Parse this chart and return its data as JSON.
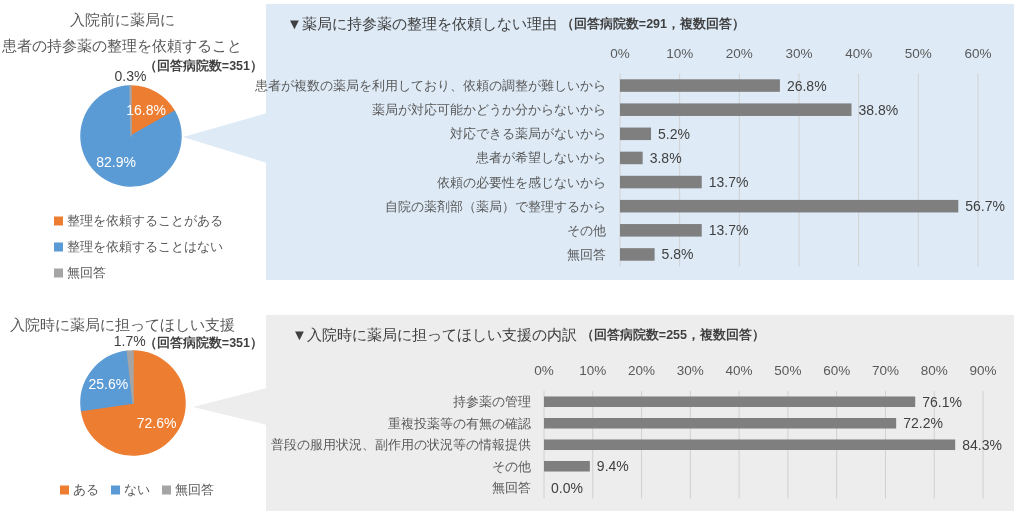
{
  "chart_data": [
    {
      "type": "pie",
      "title": "入院前に薬局に患者の持参薬の整理を依頼すること",
      "subtitle": "（回答病院数=351）",
      "categories": [
        "整理を依頼することがある",
        "整理を依頼することはない",
        "無回答"
      ],
      "values": [
        16.8,
        82.9,
        0.3
      ],
      "colors": [
        "#ed7d31",
        "#5b9bd5",
        "#a5a5a5"
      ],
      "value_labels": [
        "16.8%",
        "82.9%",
        "0.3%"
      ],
      "legend": "bottom"
    },
    {
      "type": "bar",
      "orientation": "horizontal",
      "title": "▼薬局に持参薬の整理を依頼しない理由",
      "subtitle": "（回答病院数=291，複数回答）",
      "categories": [
        "患者が複数の薬局を利用しており、依頼の調整が難しいから",
        "薬局が対応可能かどうか分からないから",
        "対応できる薬局がないから",
        "患者が希望しないから",
        "依頼の必要性を感じないから",
        "自院の薬剤部（薬局）で整理するから",
        "その他",
        "無回答"
      ],
      "values": [
        26.8,
        38.8,
        5.2,
        3.8,
        13.7,
        56.7,
        13.7,
        5.8
      ],
      "color": "#7f7f7f",
      "value_labels": [
        "26.8%",
        "38.8%",
        "5.2%",
        "3.8%",
        "13.7%",
        "56.7%",
        "13.7%",
        "5.8%"
      ],
      "xlim": [
        0,
        60
      ],
      "xticks": [
        {
          "value": 0,
          "label": "0%"
        },
        {
          "value": 10,
          "label": "10%"
        },
        {
          "value": 20,
          "label": "20%"
        },
        {
          "value": 30,
          "label": "30%"
        },
        {
          "value": 40,
          "label": "40%"
        },
        {
          "value": 50,
          "label": "50%"
        },
        {
          "value": 60,
          "label": "60%"
        }
      ],
      "grid": "x"
    },
    {
      "type": "pie",
      "title": "入院時に薬局に担ってほしい支援",
      "subtitle": "（回答病院数=351）",
      "categories": [
        "ある",
        "ない",
        "無回答"
      ],
      "values": [
        72.6,
        25.6,
        1.7
      ],
      "colors": [
        "#ed7d31",
        "#5b9bd5",
        "#a5a5a5"
      ],
      "value_labels": [
        "72.6%",
        "25.6%",
        "1.7%"
      ],
      "legend": "bottom"
    },
    {
      "type": "bar",
      "orientation": "horizontal",
      "title": "▼入院時に薬局に担ってほしい支援の内訳",
      "subtitle": "（回答病院数=255，複数回答）",
      "categories": [
        "持参薬の管理",
        "重複投薬等の有無の確認",
        "普段の服用状況、副作用の状況等の情報提供",
        "その他",
        "無回答"
      ],
      "values": [
        76.1,
        72.2,
        84.3,
        9.4,
        0.0
      ],
      "color": "#7f7f7f",
      "value_labels": [
        "76.1%",
        "72.2%",
        "84.3%",
        "9.4%",
        "0.0%"
      ],
      "xlim": [
        0,
        90
      ],
      "xticks": [
        {
          "value": 0,
          "label": "0%"
        },
        {
          "value": 10,
          "label": "10%"
        },
        {
          "value": 20,
          "label": "20%"
        },
        {
          "value": 30,
          "label": "30%"
        },
        {
          "value": 40,
          "label": "40%"
        },
        {
          "value": 50,
          "label": "50%"
        },
        {
          "value": 60,
          "label": "60%"
        },
        {
          "value": 70,
          "label": "70%"
        },
        {
          "value": 80,
          "label": "80%"
        },
        {
          "value": 90,
          "label": "90%"
        }
      ],
      "grid": "x"
    }
  ]
}
